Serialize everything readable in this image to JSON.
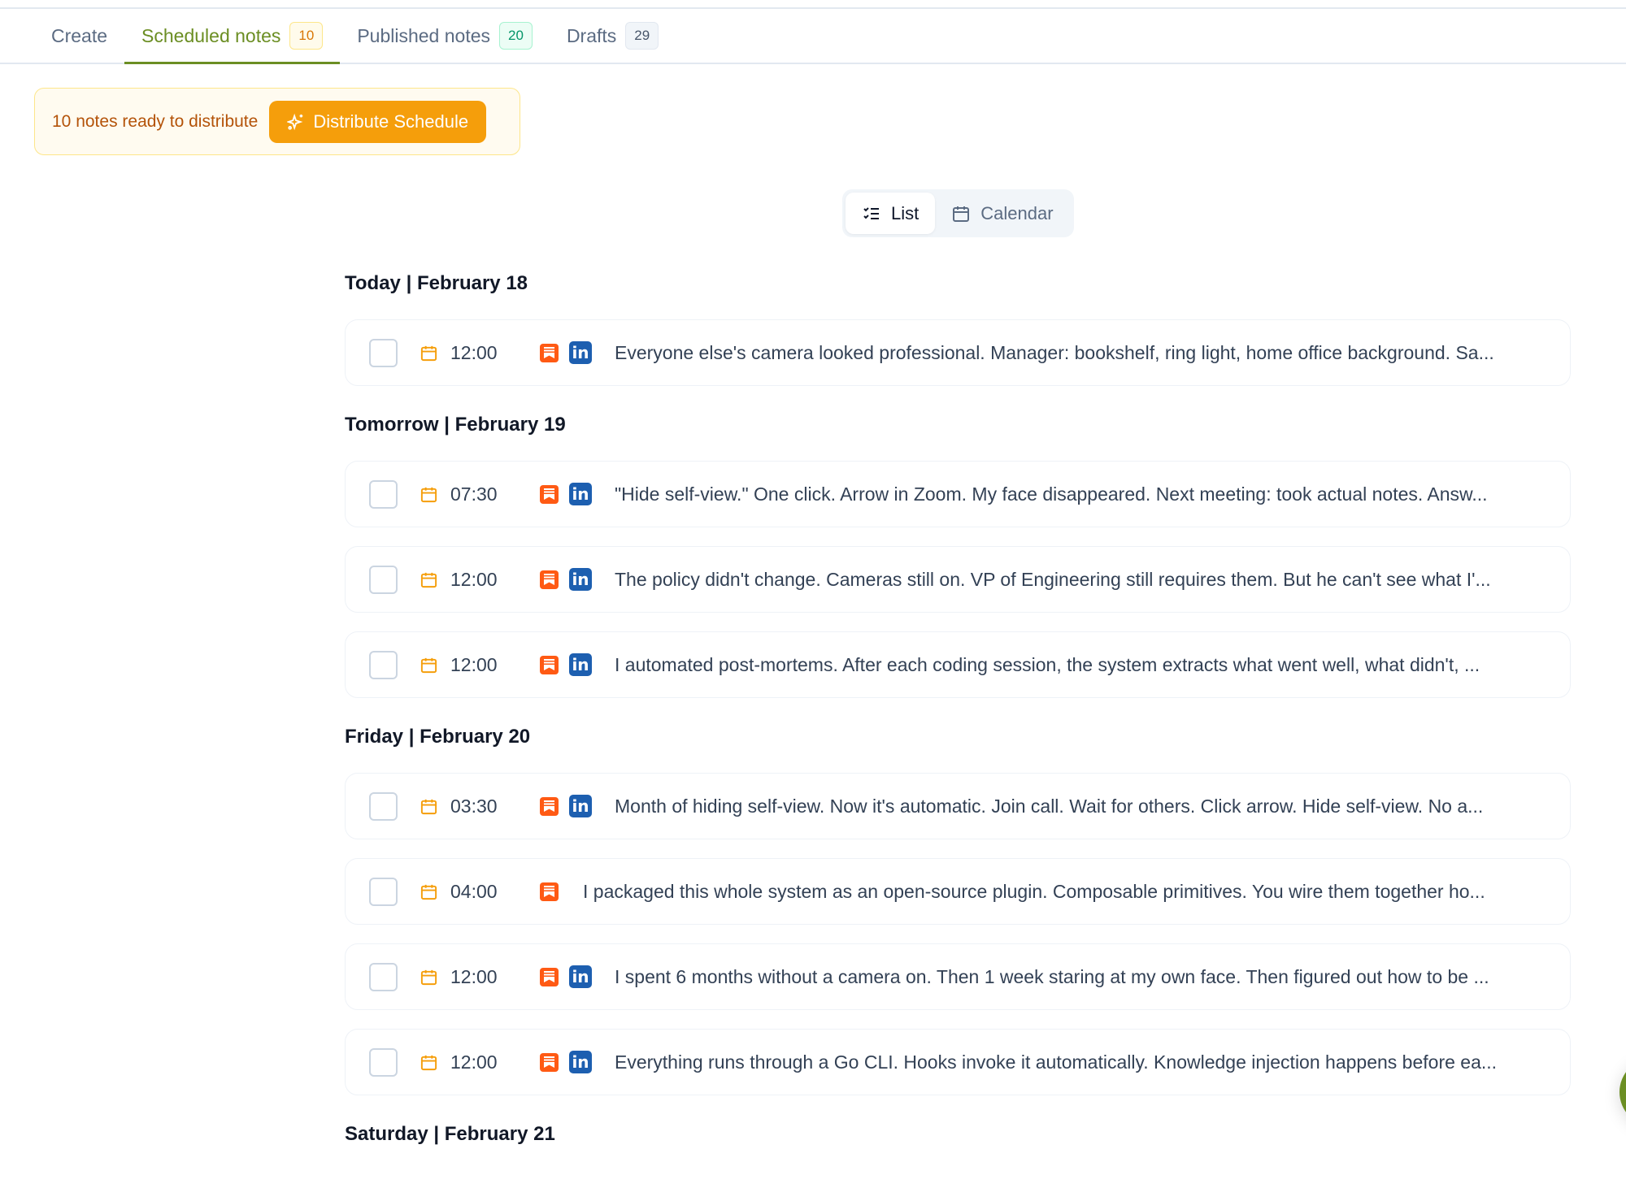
{
  "tabs": [
    {
      "label": "Create",
      "badge": null,
      "active": false
    },
    {
      "label": "Scheduled notes",
      "badge": "10",
      "active": true
    },
    {
      "label": "Published notes",
      "badge": "20",
      "active": false
    },
    {
      "label": "Drafts",
      "badge": "29",
      "active": false
    }
  ],
  "banner": {
    "text": "10 notes ready to distribute",
    "button": "Distribute Schedule",
    "button_icon": "sparkles-icon"
  },
  "view_toggle": {
    "list": "List",
    "calendar": "Calendar",
    "selected": "List"
  },
  "colors": {
    "accent": "#6b8e23",
    "warning": "#f59e0b",
    "substack": "#ff5a14",
    "linkedin": "#1d5fb0"
  },
  "groups": [
    {
      "heading": "Today | February 18",
      "notes": [
        {
          "time": "12:00",
          "linkedin": true,
          "text": "Everyone else's camera looked professional. Manager: bookshelf, ring light, home office background. Sa..."
        }
      ]
    },
    {
      "heading": "Tomorrow | February 19",
      "notes": [
        {
          "time": "07:30",
          "linkedin": true,
          "text": "\"Hide self-view.\" One click. Arrow in Zoom. My face disappeared. Next meeting: took actual notes. Answ..."
        },
        {
          "time": "12:00",
          "linkedin": true,
          "text": "The policy didn't change. Cameras still on. VP of Engineering still requires them. But he can't see what I'..."
        },
        {
          "time": "12:00",
          "linkedin": true,
          "text": "I automated post-mortems. After each coding session, the system extracts what went well, what didn't, ..."
        }
      ]
    },
    {
      "heading": "Friday | February 20",
      "notes": [
        {
          "time": "03:30",
          "linkedin": true,
          "text": "Month of hiding self-view. Now it's automatic. Join call. Wait for others. Click arrow. Hide self-view. No a..."
        },
        {
          "time": "04:00",
          "linkedin": false,
          "text": "I packaged this whole system as an open-source plugin. Composable primitives. You wire them together ho..."
        },
        {
          "time": "12:00",
          "linkedin": true,
          "text": "I spent 6 months without a camera on. Then 1 week staring at my own face. Then figured out how to be ..."
        },
        {
          "time": "12:00",
          "linkedin": true,
          "text": "Everything runs through a Go CLI. Hooks invoke it automatically. Knowledge injection happens before ea..."
        }
      ]
    },
    {
      "heading": "Saturday | February 21",
      "notes": []
    }
  ]
}
